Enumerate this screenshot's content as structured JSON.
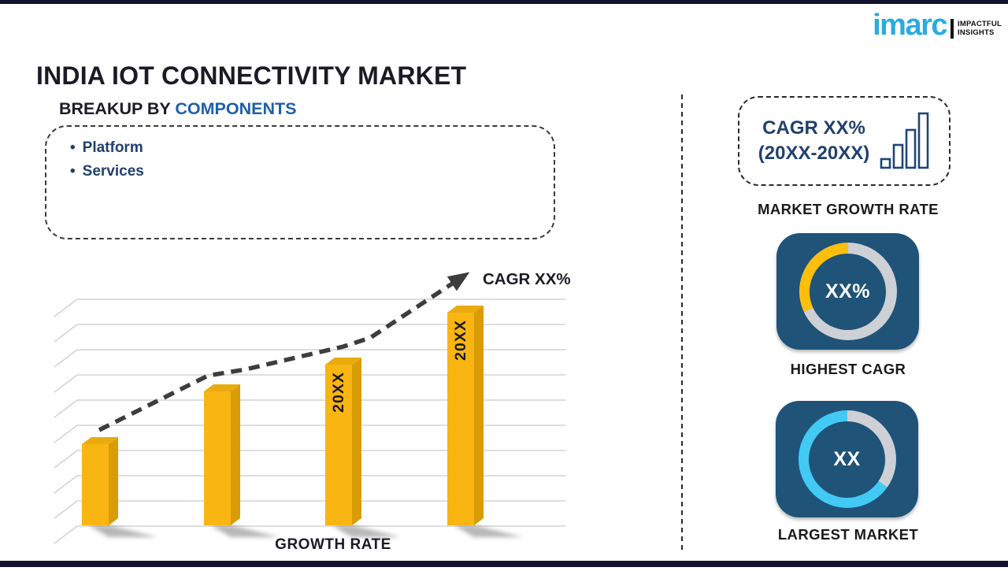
{
  "page": {
    "title": "INDIA IOT CONNECTIVITY MARKET"
  },
  "logo": {
    "brand": "imarc",
    "tagline_line1": "IMPACTFUL",
    "tagline_line2": "INSIGHTS"
  },
  "breakup": {
    "heading_prefix": "BREAKUP BY ",
    "heading_highlight": "COMPONENTS",
    "items": [
      "Platform",
      "Services"
    ]
  },
  "chart_data": [
    {
      "id": "growth_bar_chart",
      "type": "bar",
      "title": "",
      "xlabel": "GROWTH RATE",
      "ylabel": "",
      "categories": [
        "",
        "",
        "20XX",
        "20XX"
      ],
      "values": [
        103,
        170,
        204,
        270
      ],
      "ylim": [
        0,
        288
      ],
      "grid": true,
      "gridline_count": 10,
      "trend": {
        "label": "CAGR XX%",
        "points": [
          [
            126,
            216
          ],
          [
            264,
            147
          ],
          [
            312,
            139
          ],
          [
            436,
            110
          ],
          [
            470,
            99
          ],
          [
            588,
            21
          ]
        ]
      }
    },
    {
      "id": "highest_cagr_donut",
      "type": "donut",
      "center_text": "XX%",
      "caption": "HIGHEST CAGR",
      "segments": [
        {
          "name": "remainder",
          "color_key": "ring-gray",
          "from_deg": 0,
          "to_deg": 245
        },
        {
          "name": "highlight",
          "color_key": "ring-yellow",
          "from_deg": 245,
          "to_deg": 360
        }
      ]
    },
    {
      "id": "largest_market_donut",
      "type": "donut",
      "center_text": "XX",
      "caption": "LARGEST MARKET",
      "segments": [
        {
          "name": "remainder",
          "color_key": "ring-gray",
          "from_deg": 0,
          "to_deg": 125
        },
        {
          "name": "highlight",
          "color_key": "ring-cyan",
          "from_deg": 125,
          "to_deg": 360
        }
      ]
    }
  ],
  "sidebar": {
    "growth_box": {
      "line1": "CAGR XX%",
      "line2": "(20XX-20XX)"
    },
    "market_growth_rate_label": "MARKET GROWTH RATE"
  },
  "colors": {
    "bar-dark": "#12122e",
    "ink": "#1b1b26",
    "blue-accent": "#1f5fa8",
    "navy-text": "#21406e",
    "navy-card": "#1f5378",
    "imarc-cyan": "#29abe2",
    "bar-front": "#f9b512",
    "bar-side": "#d89c06",
    "bar-top": "#e9ab0e",
    "bar-label": "#1a1a1a",
    "ring-gray": "#cdd0d5",
    "ring-yellow": "#fcbf0d",
    "ring-cyan": "#42c9f4",
    "grid-gray": "#c9c9c9",
    "trend-dark": "#3d3d3d"
  }
}
